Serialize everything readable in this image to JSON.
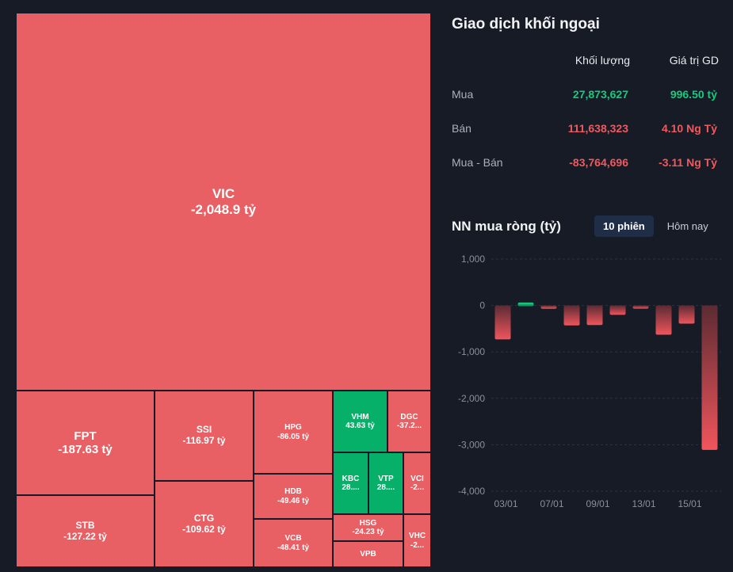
{
  "treemap": {
    "tiles": [
      {
        "key": "VIC",
        "symbol": "VIC",
        "value": "-2,048.9 tỷ",
        "trend": "down"
      },
      {
        "key": "FPT",
        "symbol": "FPT",
        "value": "-187.63 tỷ",
        "trend": "down"
      },
      {
        "key": "SSI",
        "symbol": "SSI",
        "value": "-116.97 tỷ",
        "trend": "down"
      },
      {
        "key": "HPG",
        "symbol": "HPG",
        "value": "-86.05 tỷ",
        "trend": "down"
      },
      {
        "key": "VHM",
        "symbol": "VHM",
        "value": "43.63 tỷ",
        "trend": "up"
      },
      {
        "key": "DGC",
        "symbol": "DGC",
        "value": "-37.2...",
        "trend": "down"
      },
      {
        "key": "KBC",
        "symbol": "KBC",
        "value": "28....",
        "trend": "up"
      },
      {
        "key": "VTP",
        "symbol": "VTP",
        "value": "28....",
        "trend": "up"
      },
      {
        "key": "VCI",
        "symbol": "VCI",
        "value": "-2...",
        "trend": "down"
      },
      {
        "key": "HDB",
        "symbol": "HDB",
        "value": "-49.46 tỷ",
        "trend": "down"
      },
      {
        "key": "STB",
        "symbol": "STB",
        "value": "-127.22 tỷ",
        "trend": "down"
      },
      {
        "key": "CTG",
        "symbol": "CTG",
        "value": "-109.62 tỷ",
        "trend": "down"
      },
      {
        "key": "VCB",
        "symbol": "VCB",
        "value": "-48.41 tỷ",
        "trend": "down"
      },
      {
        "key": "HSG",
        "symbol": "HSG",
        "value": "-24.23 tỷ",
        "trend": "down"
      },
      {
        "key": "VPB",
        "symbol": "VPB",
        "value": "",
        "trend": "down"
      },
      {
        "key": "VHC",
        "symbol": "VHC",
        "value": "-2...",
        "trend": "down"
      }
    ]
  },
  "foreign": {
    "title": "Giao dịch khối ngoại",
    "col_volume": "Khối lượng",
    "col_value": "Giá trị GD",
    "rows": [
      {
        "label": "Mua",
        "volume": "27,873,627",
        "value": "996.50 tỷ",
        "trend": "up"
      },
      {
        "label": "Bán",
        "volume": "111,638,323",
        "value": "4.10 Ng Tỷ",
        "trend": "down"
      },
      {
        "label": "Mua - Bán",
        "volume": "-83,764,696",
        "value": "-3.11 Ng Tỷ",
        "trend": "down"
      }
    ]
  },
  "net_buy": {
    "title": "NN mua ròng (tỷ)",
    "tabs": [
      {
        "label": "10 phiên",
        "active": true
      },
      {
        "label": "Hôm nay",
        "active": false
      }
    ]
  },
  "colors": {
    "up": "#07b068",
    "down": "#e85f64",
    "background": "#161b26"
  },
  "chart_data": {
    "type": "bar",
    "title": "NN mua ròng (tỷ)",
    "xlabel": "",
    "ylabel": "",
    "ylim": [
      -4000,
      1000
    ],
    "yticks": [
      "1,000",
      "0",
      "-1,000",
      "-2,000",
      "-3,000",
      "-4,000"
    ],
    "ytick_values": [
      1000,
      0,
      -1000,
      -2000,
      -3000,
      -4000
    ],
    "xtick_labels": [
      "03/01",
      "07/01",
      "09/01",
      "13/01",
      "15/01"
    ],
    "values": [
      -730,
      80,
      -70,
      -430,
      -420,
      -200,
      -50,
      -630,
      -390,
      -3110
    ],
    "grid": true
  }
}
